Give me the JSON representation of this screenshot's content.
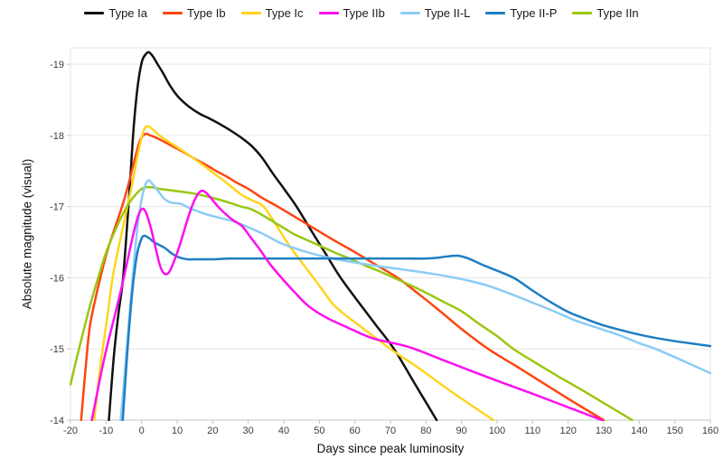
{
  "chart_data": {
    "type": "line",
    "title": "",
    "xlabel": "Days since peak luminosity",
    "ylabel": "Absolute magnitude (visual)",
    "xlim": [
      -20,
      160
    ],
    "x_ticks": [
      -20,
      -10,
      0,
      10,
      20,
      30,
      40,
      50,
      60,
      70,
      80,
      90,
      100,
      110,
      120,
      130,
      140,
      150,
      160
    ],
    "y_ticks": [
      -19,
      -18,
      -17,
      -16,
      -15,
      -14
    ],
    "y_top": -19.23,
    "y_bottom": -14,
    "y_axis_inverted": true,
    "grid": "horizontal",
    "legend_position": "top",
    "grid_color": "#e6e6e6",
    "axis_color": "#c4c4c4",
    "series": [
      {
        "name": "Type Ia",
        "color": "#111111",
        "points": [
          [
            -9.2,
            -14
          ],
          [
            -7.8,
            -14.9
          ],
          [
            -6.5,
            -15.5
          ],
          [
            -5.2,
            -16
          ],
          [
            -3.7,
            -17
          ],
          [
            -2.4,
            -18
          ],
          [
            -1.2,
            -18.65
          ],
          [
            0,
            -19.02
          ],
          [
            1,
            -19.13
          ],
          [
            2,
            -19.17
          ],
          [
            3.2,
            -19.11
          ],
          [
            4.5,
            -19
          ],
          [
            6,
            -18.88
          ],
          [
            8,
            -18.7
          ],
          [
            10,
            -18.56
          ],
          [
            12,
            -18.46
          ],
          [
            14,
            -18.38
          ],
          [
            16.5,
            -18.3
          ],
          [
            19,
            -18.24
          ],
          [
            22,
            -18.16
          ],
          [
            25,
            -18.07
          ],
          [
            28,
            -17.97
          ],
          [
            31,
            -17.85
          ],
          [
            34,
            -17.68
          ],
          [
            37,
            -17.46
          ],
          [
            40.5,
            -17.22
          ],
          [
            43.6,
            -17
          ],
          [
            48,
            -16.64
          ],
          [
            52,
            -16.32
          ],
          [
            56,
            -16
          ],
          [
            61,
            -15.66
          ],
          [
            66,
            -15.33
          ],
          [
            71,
            -15
          ],
          [
            77,
            -14.5
          ],
          [
            83,
            -14
          ]
        ]
      },
      {
        "name": "Type Ib",
        "color": "#ff4510",
        "points": [
          [
            -17,
            -14
          ],
          [
            -15.8,
            -14.7
          ],
          [
            -14.6,
            -15.3
          ],
          [
            -13,
            -15.7
          ],
          [
            -11.6,
            -16
          ],
          [
            -9.8,
            -16.35
          ],
          [
            -8.2,
            -16.6
          ],
          [
            -6.5,
            -16.85
          ],
          [
            -5,
            -17.08
          ],
          [
            -3.5,
            -17.35
          ],
          [
            -2,
            -17.65
          ],
          [
            -0.5,
            -17.92
          ],
          [
            1,
            -18.02
          ],
          [
            2.5,
            -18
          ],
          [
            4,
            -17.97
          ],
          [
            6,
            -17.92
          ],
          [
            9,
            -17.84
          ],
          [
            12,
            -17.76
          ],
          [
            15,
            -17.67
          ],
          [
            18,
            -17.59
          ],
          [
            21,
            -17.5
          ],
          [
            24,
            -17.42
          ],
          [
            27,
            -17.33
          ],
          [
            30,
            -17.25
          ],
          [
            34,
            -17.12
          ],
          [
            38.3,
            -17
          ],
          [
            43,
            -16.86
          ],
          [
            48,
            -16.71
          ],
          [
            54,
            -16.53
          ],
          [
            60,
            -16.36
          ],
          [
            66,
            -16.18
          ],
          [
            72,
            -16
          ],
          [
            78,
            -15.77
          ],
          [
            84,
            -15.53
          ],
          [
            90,
            -15.28
          ],
          [
            97.5,
            -15
          ],
          [
            105,
            -14.77
          ],
          [
            113,
            -14.52
          ],
          [
            121,
            -14.27
          ],
          [
            130,
            -14
          ]
        ]
      },
      {
        "name": "Type Ic",
        "color": "#ffd41f",
        "points": [
          [
            -13.3,
            -14
          ],
          [
            -12,
            -14.6
          ],
          [
            -10.8,
            -15.05
          ],
          [
            -9.5,
            -15.5
          ],
          [
            -8.3,
            -15.95
          ],
          [
            -7,
            -16.3
          ],
          [
            -5.5,
            -16.65
          ],
          [
            -4,
            -17
          ],
          [
            -2.5,
            -17.35
          ],
          [
            -1,
            -17.75
          ],
          [
            0.5,
            -18.05
          ],
          [
            1.5,
            -18.13
          ],
          [
            3,
            -18.09
          ],
          [
            5,
            -18
          ],
          [
            8,
            -17.9
          ],
          [
            12,
            -17.77
          ],
          [
            16,
            -17.63
          ],
          [
            20,
            -17.48
          ],
          [
            24,
            -17.33
          ],
          [
            28,
            -17.17
          ],
          [
            31,
            -17.09
          ],
          [
            34.3,
            -17
          ],
          [
            38,
            -16.73
          ],
          [
            42,
            -16.42
          ],
          [
            47,
            -16.09
          ],
          [
            51,
            -15.82
          ],
          [
            54,
            -15.62
          ],
          [
            58,
            -15.45
          ],
          [
            62,
            -15.3
          ],
          [
            70,
            -15
          ],
          [
            78,
            -14.73
          ],
          [
            86,
            -14.44
          ],
          [
            93,
            -14.2
          ],
          [
            99,
            -14
          ]
        ]
      },
      {
        "name": "Type IIb",
        "color": "#fb0ff0",
        "points": [
          [
            -14,
            -14
          ],
          [
            -12.5,
            -14.38
          ],
          [
            -11,
            -14.75
          ],
          [
            -9.5,
            -15.08
          ],
          [
            -8,
            -15.38
          ],
          [
            -6.5,
            -15.68
          ],
          [
            -5,
            -16
          ],
          [
            -3.5,
            -16.35
          ],
          [
            -2,
            -16.68
          ],
          [
            -0.8,
            -16.89
          ],
          [
            0.2,
            -16.97
          ],
          [
            1.2,
            -16.92
          ],
          [
            2.5,
            -16.72
          ],
          [
            3.8,
            -16.45
          ],
          [
            5,
            -16.2
          ],
          [
            6,
            -16.08
          ],
          [
            7,
            -16.05
          ],
          [
            8,
            -16.1
          ],
          [
            9.5,
            -16.28
          ],
          [
            11,
            -16.5
          ],
          [
            12.5,
            -16.75
          ],
          [
            14,
            -16.98
          ],
          [
            15.5,
            -17.15
          ],
          [
            16.8,
            -17.22
          ],
          [
            18,
            -17.2
          ],
          [
            19.5,
            -17.12
          ],
          [
            21.5,
            -17
          ],
          [
            24,
            -16.88
          ],
          [
            26,
            -16.8
          ],
          [
            28.2,
            -16.73
          ],
          [
            30.5,
            -16.58
          ],
          [
            33.5,
            -16.38
          ],
          [
            36,
            -16.2
          ],
          [
            39,
            -16.02
          ],
          [
            43,
            -15.8
          ],
          [
            47,
            -15.6
          ],
          [
            52,
            -15.44
          ],
          [
            58,
            -15.3
          ],
          [
            65,
            -15.15
          ],
          [
            75,
            -15.03
          ],
          [
            85,
            -14.84
          ],
          [
            97.5,
            -14.6
          ],
          [
            110,
            -14.37
          ],
          [
            120,
            -14.18
          ],
          [
            129.5,
            -14
          ]
        ]
      },
      {
        "name": "Type II-L",
        "color": "#8cccf5",
        "points": [
          [
            -5.9,
            -14
          ],
          [
            -5,
            -14.5
          ],
          [
            -4.2,
            -15
          ],
          [
            -3.4,
            -15.48
          ],
          [
            -2.6,
            -15.95
          ],
          [
            -1.8,
            -16.4
          ],
          [
            -1,
            -16.78
          ],
          [
            0,
            -17.1
          ],
          [
            1,
            -17.3
          ],
          [
            2,
            -17.37
          ],
          [
            3,
            -17.32
          ],
          [
            4.5,
            -17.23
          ],
          [
            6,
            -17.13
          ],
          [
            7.5,
            -17.07
          ],
          [
            9,
            -17.05
          ],
          [
            11,
            -17.04
          ],
          [
            13,
            -16.99
          ],
          [
            16,
            -16.93
          ],
          [
            19,
            -16.88
          ],
          [
            23,
            -16.83
          ],
          [
            26,
            -16.79
          ],
          [
            30,
            -16.71
          ],
          [
            34,
            -16.62
          ],
          [
            39,
            -16.49
          ],
          [
            44,
            -16.4
          ],
          [
            48,
            -16.34
          ],
          [
            52,
            -16.29
          ],
          [
            57,
            -16.24
          ],
          [
            62,
            -16.2
          ],
          [
            67,
            -16.16
          ],
          [
            73,
            -16.12
          ],
          [
            80,
            -16.07
          ],
          [
            86,
            -16.02
          ],
          [
            92,
            -15.96
          ],
          [
            98,
            -15.88
          ],
          [
            104,
            -15.77
          ],
          [
            110,
            -15.65
          ],
          [
            116,
            -15.53
          ],
          [
            122,
            -15.4
          ],
          [
            128,
            -15.3
          ],
          [
            134,
            -15.2
          ],
          [
            140,
            -15.08
          ],
          [
            144.6,
            -15
          ],
          [
            152,
            -14.84
          ],
          [
            160,
            -14.66
          ]
        ]
      },
      {
        "name": "Type II-P",
        "color": "#1e7ec2",
        "points": [
          [
            -5.3,
            -14
          ],
          [
            -4.5,
            -14.6
          ],
          [
            -3.8,
            -15.1
          ],
          [
            -3,
            -15.6
          ],
          [
            -2.2,
            -16
          ],
          [
            -1.2,
            -16.35
          ],
          [
            0,
            -16.55
          ],
          [
            0.8,
            -16.59
          ],
          [
            2,
            -16.56
          ],
          [
            3.5,
            -16.5
          ],
          [
            5,
            -16.46
          ],
          [
            6.5,
            -16.42
          ],
          [
            8,
            -16.36
          ],
          [
            9.5,
            -16.31
          ],
          [
            11,
            -16.28
          ],
          [
            13,
            -16.26
          ],
          [
            16,
            -16.26
          ],
          [
            20,
            -16.26
          ],
          [
            25,
            -16.27
          ],
          [
            30,
            -16.27
          ],
          [
            35,
            -16.27
          ],
          [
            40,
            -16.27
          ],
          [
            45,
            -16.27
          ],
          [
            50,
            -16.27
          ],
          [
            55,
            -16.27
          ],
          [
            60,
            -16.27
          ],
          [
            65,
            -16.27
          ],
          [
            70,
            -16.27
          ],
          [
            75,
            -16.27
          ],
          [
            80,
            -16.27
          ],
          [
            83,
            -16.28
          ],
          [
            86,
            -16.3
          ],
          [
            89,
            -16.31
          ],
          [
            92,
            -16.27
          ],
          [
            96,
            -16.18
          ],
          [
            100,
            -16.1
          ],
          [
            105,
            -15.99
          ],
          [
            110,
            -15.82
          ],
          [
            115,
            -15.66
          ],
          [
            120,
            -15.52
          ],
          [
            125,
            -15.42
          ],
          [
            130,
            -15.33
          ],
          [
            136,
            -15.25
          ],
          [
            142,
            -15.18
          ],
          [
            150,
            -15.11
          ],
          [
            160,
            -15.04
          ]
        ]
      },
      {
        "name": "Type IIn",
        "color": "#9ac713",
        "points": [
          [
            -20,
            -14.5
          ],
          [
            -18.5,
            -14.82
          ],
          [
            -17,
            -15.12
          ],
          [
            -15.5,
            -15.42
          ],
          [
            -14,
            -15.7
          ],
          [
            -12.5,
            -15.95
          ],
          [
            -11,
            -16.2
          ],
          [
            -9.5,
            -16.42
          ],
          [
            -8,
            -16.6
          ],
          [
            -6.5,
            -16.77
          ],
          [
            -5,
            -16.92
          ],
          [
            -3.5,
            -17.05
          ],
          [
            -2,
            -17.15
          ],
          [
            -0.5,
            -17.23
          ],
          [
            1,
            -17.27
          ],
          [
            3,
            -17.27
          ],
          [
            5,
            -17.25
          ],
          [
            8,
            -17.23
          ],
          [
            11,
            -17.21
          ],
          [
            14,
            -17.19
          ],
          [
            17,
            -17.16
          ],
          [
            21,
            -17.11
          ],
          [
            25,
            -17.05
          ],
          [
            28,
            -17
          ],
          [
            31,
            -16.96
          ],
          [
            35,
            -16.85
          ],
          [
            39,
            -16.73
          ],
          [
            43,
            -16.61
          ],
          [
            47,
            -16.52
          ],
          [
            51,
            -16.43
          ],
          [
            55,
            -16.34
          ],
          [
            59,
            -16.26
          ],
          [
            63,
            -16.17
          ],
          [
            67,
            -16.09
          ],
          [
            71,
            -16
          ],
          [
            75,
            -15.91
          ],
          [
            80,
            -15.79
          ],
          [
            85,
            -15.66
          ],
          [
            90,
            -15.53
          ],
          [
            95,
            -15.35
          ],
          [
            100,
            -15.18
          ],
          [
            104.6,
            -15
          ],
          [
            111,
            -14.8
          ],
          [
            117,
            -14.62
          ],
          [
            124,
            -14.42
          ],
          [
            131,
            -14.21
          ],
          [
            138,
            -14
          ]
        ]
      }
    ]
  }
}
